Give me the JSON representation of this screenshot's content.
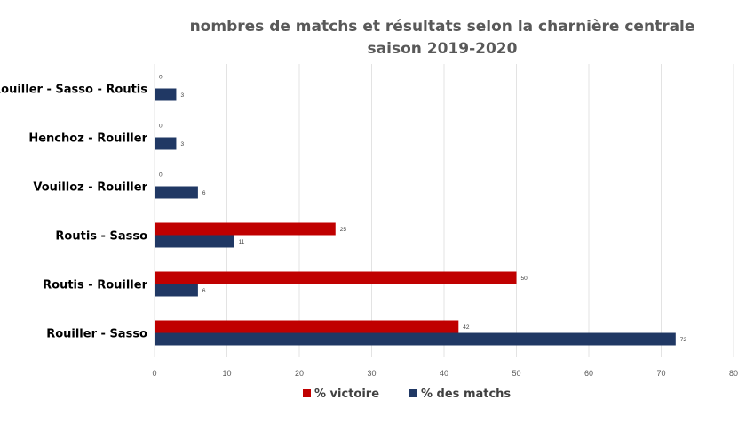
{
  "chart_data": {
    "type": "bar",
    "orientation": "horizontal",
    "title": "nombres de matchs et résultats selon la charnière centrale",
    "subtitle": "saison 2019-2020",
    "categories": [
      "Rouiller - Sasso - Routis",
      "Henchoz - Rouiller",
      "Vouilloz - Rouiller",
      "Routis - Sasso",
      "Routis - Rouiller",
      "Rouiller - Sasso"
    ],
    "series": [
      {
        "name": "% victoire",
        "color": "#c00000",
        "values": [
          0,
          0,
          0,
          25,
          50,
          42
        ]
      },
      {
        "name": "% des matchs",
        "color": "#203864",
        "values": [
          3,
          3,
          6,
          11,
          6,
          72
        ]
      }
    ],
    "xlim": [
      0,
      80
    ],
    "xticks": [
      0,
      10,
      20,
      30,
      40,
      50,
      60,
      70,
      80
    ],
    "grid": true,
    "legend": "bottom"
  }
}
